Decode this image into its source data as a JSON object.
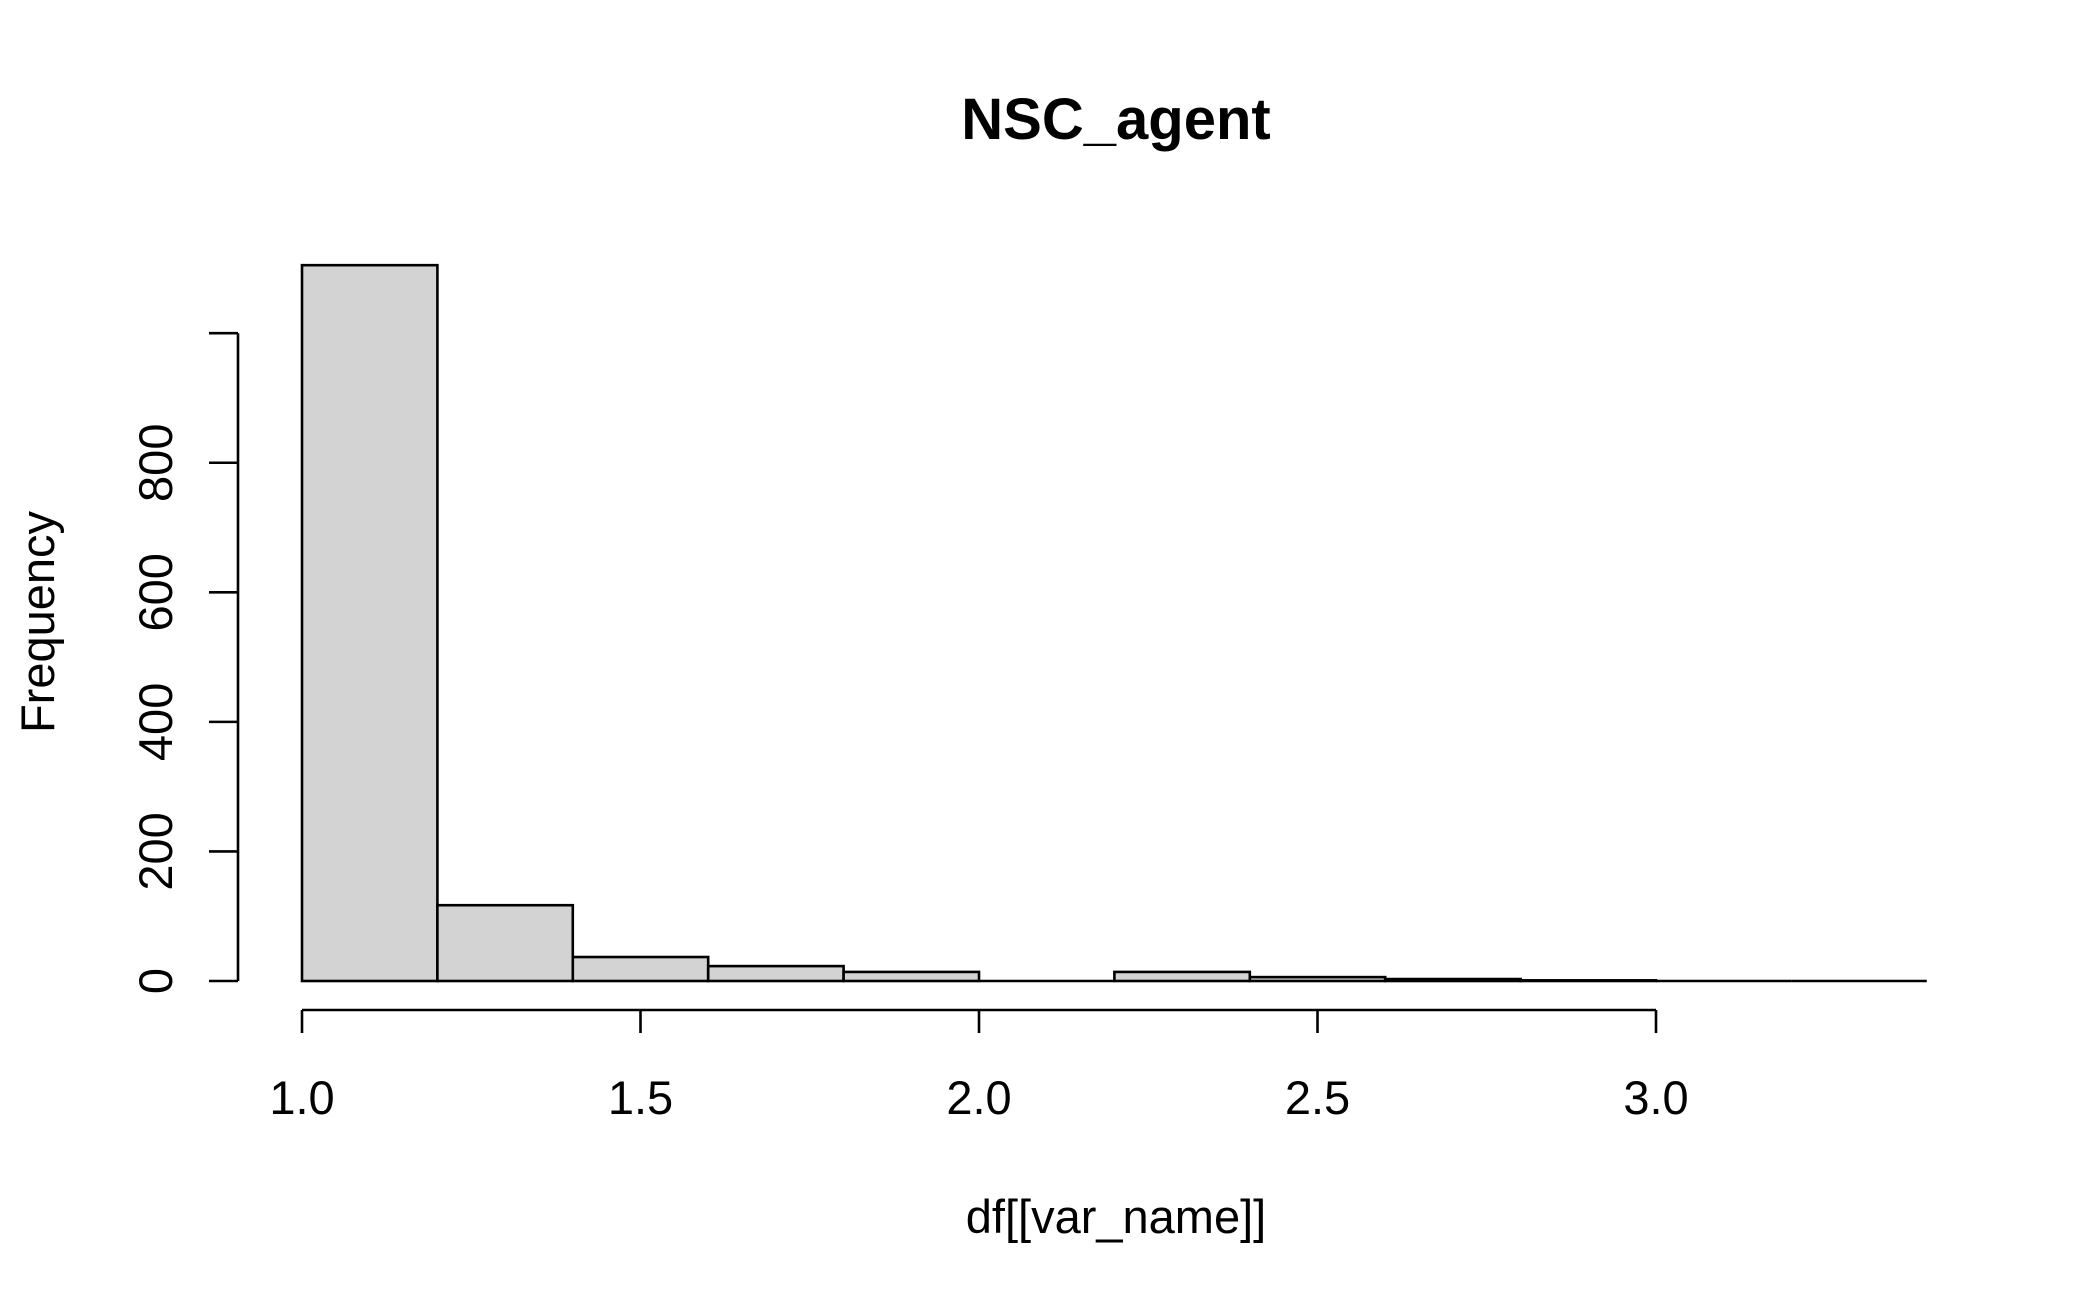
{
  "chart_data": {
    "type": "bar",
    "title": "NSC_agent",
    "xlabel": "df[[var_name]]",
    "ylabel": "Frequency",
    "bins": [
      {
        "x0": 1.0,
        "x1": 1.2,
        "count": 1105
      },
      {
        "x0": 1.2,
        "x1": 1.4,
        "count": 117
      },
      {
        "x0": 1.4,
        "x1": 1.6,
        "count": 37
      },
      {
        "x0": 1.6,
        "x1": 1.8,
        "count": 23
      },
      {
        "x0": 1.8,
        "x1": 2.0,
        "count": 14
      },
      {
        "x0": 2.0,
        "x1": 2.2,
        "count": 0
      },
      {
        "x0": 2.2,
        "x1": 2.4,
        "count": 14
      },
      {
        "x0": 2.4,
        "x1": 2.6,
        "count": 6
      },
      {
        "x0": 2.6,
        "x1": 2.8,
        "count": 3
      },
      {
        "x0": 2.8,
        "x1": 3.0,
        "count": 1
      },
      {
        "x0": 3.0,
        "x1": 3.2,
        "count": 0
      },
      {
        "x0": 3.2,
        "x1": 3.4,
        "count": 0
      }
    ],
    "xlim": [
      1.0,
      3.4
    ],
    "ylim": [
      0,
      1105
    ],
    "xticks": [
      1.0,
      1.5,
      2.0,
      2.5,
      3.0
    ],
    "xtick_labels": [
      "1.0",
      "1.5",
      "2.0",
      "2.5",
      "3.0"
    ],
    "yticks": [
      0,
      200,
      400,
      600,
      800,
      1000
    ],
    "ytick_labels": [
      "0",
      "200",
      "400",
      "600",
      "800",
      ""
    ],
    "bar_color": "#d3d3d3",
    "edge_color": "#000000",
    "grid": false
  }
}
